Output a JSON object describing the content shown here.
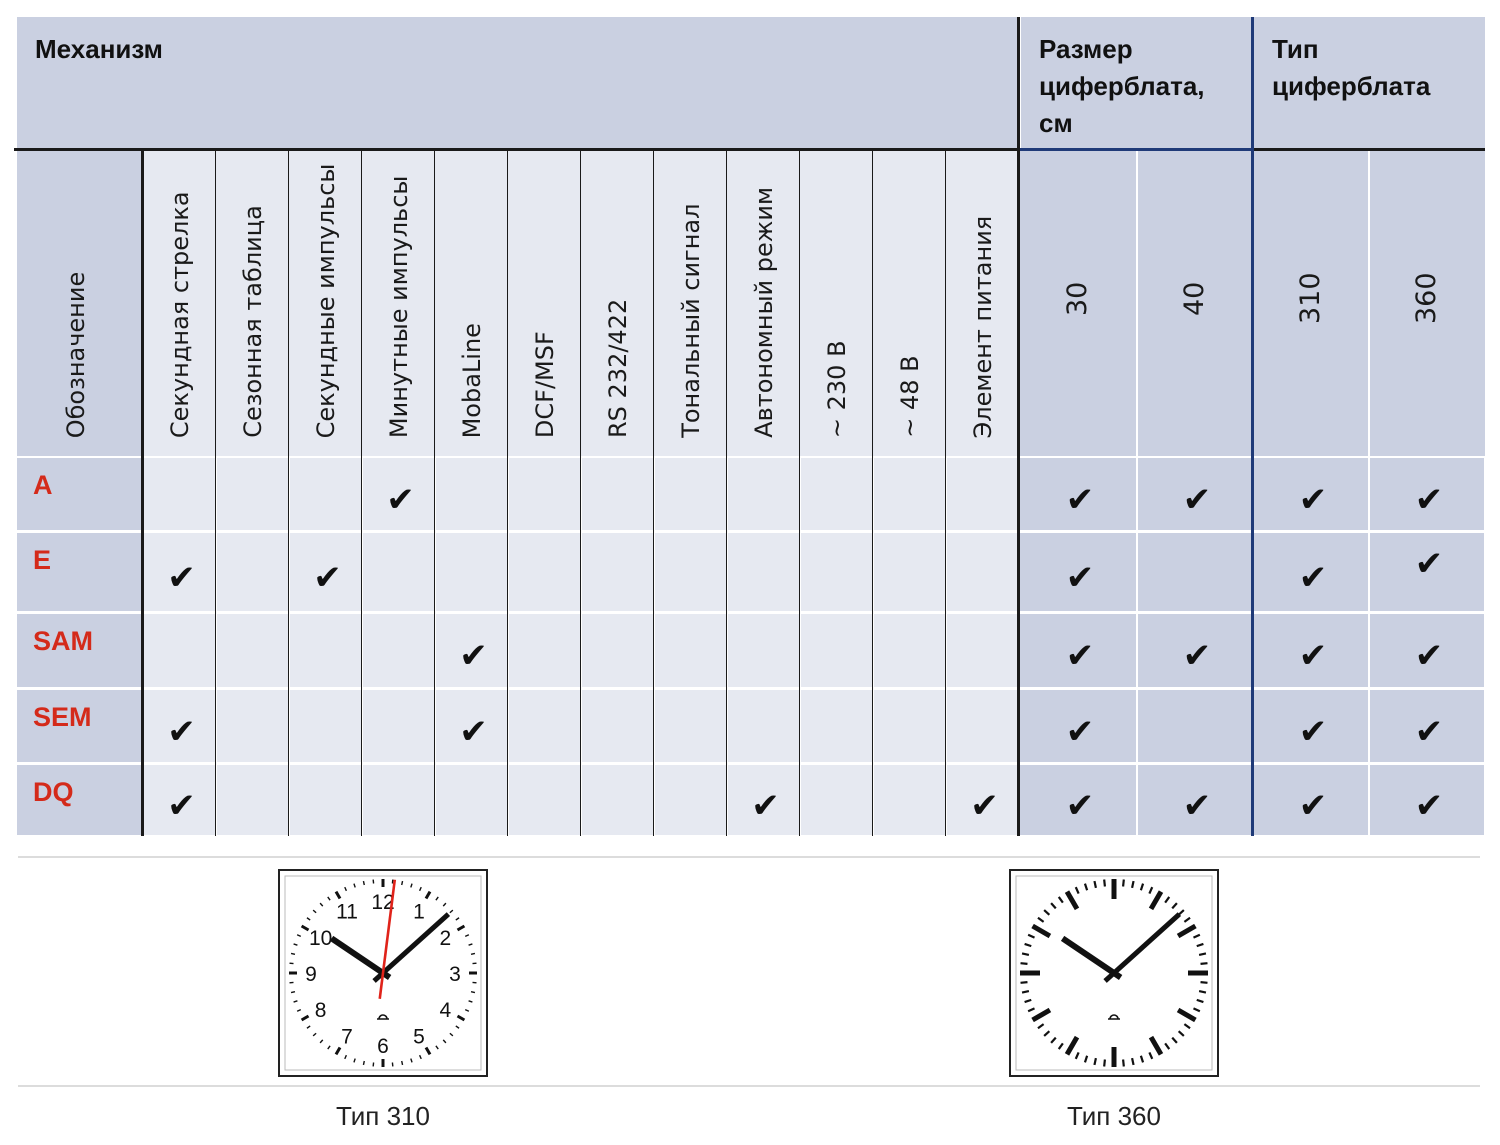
{
  "header": {
    "mechanism": "Механизм",
    "dial_size": [
      "Размер",
      "циферблата,",
      "см"
    ],
    "dial_type": [
      "Тип",
      "циферблата"
    ]
  },
  "columns": [
    "Обозначение",
    "Секундная стрелка",
    "Сезонная таблица",
    "Секундные импульсы",
    "Минутные импульсы",
    "MobaLine",
    "DCF/MSF",
    "RS 232/422",
    "Тональный сигнал",
    "Автономный режим",
    "~ 230 В",
    "~ 48 В",
    "Элемент питания",
    "30",
    "40",
    "310",
    "360"
  ],
  "check_symbol": "✔",
  "rows": [
    {
      "label": "A",
      "checks": [
        0,
        0,
        0,
        1,
        0,
        0,
        0,
        0,
        0,
        0,
        0,
        0,
        1,
        1,
        1,
        1
      ]
    },
    {
      "label": "E",
      "checks": [
        1,
        0,
        1,
        0,
        0,
        0,
        0,
        0,
        0,
        0,
        0,
        0,
        1,
        0,
        1,
        1
      ]
    },
    {
      "label": "SAM",
      "checks": [
        0,
        0,
        0,
        0,
        1,
        0,
        0,
        0,
        0,
        0,
        0,
        0,
        1,
        1,
        1,
        1
      ]
    },
    {
      "label": "SEM",
      "checks": [
        1,
        0,
        0,
        0,
        1,
        0,
        0,
        0,
        0,
        0,
        0,
        0,
        1,
        0,
        1,
        1
      ]
    },
    {
      "label": "DQ",
      "checks": [
        1,
        0,
        0,
        0,
        0,
        0,
        0,
        0,
        1,
        0,
        0,
        1,
        1,
        1,
        1,
        1
      ]
    }
  ],
  "clocks": [
    {
      "caption": "Тип 310",
      "numerals": [
        "12",
        "1",
        "2",
        "3",
        "4",
        "5",
        "6",
        "7",
        "8",
        "9",
        "10",
        "11"
      ],
      "second_hand_color": "#e0231a"
    },
    {
      "caption": "Тип 360"
    }
  ],
  "colors": {
    "header_bg": "#cad0e1",
    "cell_light": "#e6e9f1",
    "cell_dark": "#cad0e1",
    "label_red": "#d42a1a",
    "divider_blue": "#1f3a78"
  }
}
